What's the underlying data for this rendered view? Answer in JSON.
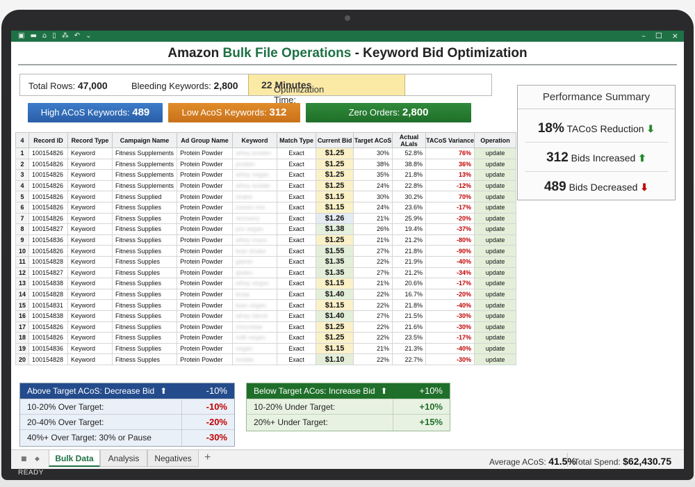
{
  "toolbar": {
    "icons": [
      "save-icon",
      "layout-icon",
      "home-icon",
      "file-icon",
      "format-icon",
      "undo-icon",
      "dropdown-icon"
    ],
    "window_controls": [
      "–",
      "☐",
      "×"
    ]
  },
  "title": {
    "prefix": "Amazon ",
    "highlight": "Bulk File Operations",
    "suffix": " - Keyword Bid Optimization"
  },
  "stats": {
    "total_rows_label": "Total Rows:",
    "total_rows": "47,000",
    "bleeding_label": "Bleeding Keywords:",
    "bleeding": "2,800",
    "opt_time_label": "Optimization Time:",
    "opt_time": "22 Minutes"
  },
  "badges": {
    "high_acos_label": "High ACoS Keywords:",
    "high_acos": "489",
    "low_acos_label": "Low AcoS Keywords:",
    "low_acos": "312",
    "zero_orders_label": "Zero Orders:",
    "zero_orders": "2,800"
  },
  "grid": {
    "corner": "4",
    "columns": [
      "Record ID",
      "Record Type",
      "Campaign Name",
      "Ad Group Name",
      "Keyword",
      "Match Type",
      "Current Bid",
      "Target ACoS",
      "Actual ALals",
      "TACoS Variance",
      "Operation"
    ],
    "rows": [
      [
        "1",
        "100154826",
        "Keyword",
        "Fitness Supplements",
        "Protein Powder",
        "whey protein",
        "Exact",
        "$1.25",
        "30%",
        "52.8%",
        "76%",
        "update"
      ],
      [
        "2",
        "100154826",
        "Keyword",
        "Fitness Supplements",
        "Protein Powder",
        "protein",
        "Exact",
        "$1.25",
        "38%",
        "38.8%",
        "36%",
        "update"
      ],
      [
        "3",
        "100154826",
        "Keyword",
        "Fitness Supplements",
        "Protein Powder",
        "whey vegan",
        "Exact",
        "$1.25",
        "35%",
        "21.8%",
        "13%",
        "update"
      ],
      [
        "4",
        "100154826",
        "Keyword",
        "Fitness Supplements",
        "Protein Powder",
        "whey isolate",
        "Exact",
        "$1.25",
        "24%",
        "22.8%",
        "-12%",
        "update"
      ],
      [
        "5",
        "100154826",
        "Keyword",
        "Fitness Supplied",
        "Protein Powder",
        "shake",
        "Exact",
        "$1.15",
        "30%",
        "30.2%",
        "70%",
        "update"
      ],
      [
        "6",
        "100154826",
        "Keyword",
        "Fitness Supplies",
        "Protein Powder",
        "casein mix",
        "Exact",
        "$1.15",
        "24%",
        "23.6%",
        "-17%",
        "update"
      ],
      [
        "7",
        "100154826",
        "Keyword",
        "Fitness Supplies",
        "Protein Powder",
        "recovery",
        "Exact",
        "$1.26",
        "21%",
        "25.9%",
        "-20%",
        "update"
      ],
      [
        "8",
        "100154827",
        "Keyword",
        "Fitness Supplies",
        "Protein Powder",
        "pro vegan",
        "Exact",
        "$1.38",
        "26%",
        "19.4%",
        "-37%",
        "update"
      ],
      [
        "9",
        "100154836",
        "Keyword",
        "Fitness Supplies",
        "Protein Powder",
        "whey mass",
        "Exact",
        "$1.25",
        "21%",
        "21.2%",
        "-80%",
        "update"
      ],
      [
        "10",
        "100154826",
        "Keyword",
        "Fitness Supplies",
        "Protein Powder",
        "lean shake",
        "Exact",
        "$1.55",
        "27%",
        "21.8%",
        "-90%",
        "update"
      ],
      [
        "11",
        "100154828",
        "Keyword",
        "Fitness Supples",
        "Protein Powder",
        "gainer",
        "Exact",
        "$1.35",
        "22%",
        "21.9%",
        "-40%",
        "update"
      ],
      [
        "12",
        "100154827",
        "Keyword",
        "Fitness Supples",
        "Protein Powder",
        "gluten",
        "Exact",
        "$1.35",
        "27%",
        "21.2%",
        "-34%",
        "update"
      ],
      [
        "13",
        "100154838",
        "Keyword",
        "Fitness Supplies",
        "Protein Powder",
        "whey vegan",
        "Exact",
        "$1.15",
        "21%",
        "20.6%",
        "-17%",
        "update"
      ],
      [
        "14",
        "100154828",
        "Keyword",
        "Fitness Supplies",
        "Protein Powder",
        "bcaa",
        "Exact",
        "$1.40",
        "22%",
        "16.7%",
        "-20%",
        "update"
      ],
      [
        "15",
        "100154831",
        "Keyword",
        "Fitness Supplies",
        "Protein Powder",
        "lean vegan",
        "Exact",
        "$1.15",
        "22%",
        "21.8%",
        "-40%",
        "update"
      ],
      [
        "16",
        "100154838",
        "Keyword",
        "Fitness Supplies",
        "Protein Powder",
        "whey blend",
        "Exact",
        "$1.40",
        "27%",
        "21.5%",
        "-30%",
        "update"
      ],
      [
        "17",
        "100154826",
        "Keyword",
        "Fitness Supplies",
        "Protein Powder",
        "chocolate",
        "Exact",
        "$1.25",
        "22%",
        "21.6%",
        "-30%",
        "update"
      ],
      [
        "18",
        "100154826",
        "Keyword",
        "Fitness Supplies",
        "Protein Powder",
        "milk vegan",
        "Exact",
        "$1.25",
        "22%",
        "23.5%",
        "-17%",
        "update"
      ],
      [
        "19",
        "100154836",
        "Keyword",
        "Fitness Supplies",
        "Protein Powder",
        "vegan",
        "Exact",
        "$1.15",
        "21%",
        "21.3%",
        "-40%",
        "update"
      ],
      [
        "20",
        "100154828",
        "Keyword",
        "Fitness Supples",
        "Protein Powder",
        "isolate",
        "Exact",
        "$1.10",
        "22%",
        "22.7%",
        "-30%",
        "update"
      ]
    ]
  },
  "performance": {
    "title": "Performance Summary",
    "tacos_value": "18%",
    "tacos_label": "TACoS Reduction",
    "increased_value": "312",
    "increased_label": "Bids Increased",
    "decreased_value": "489",
    "decreased_label": "Bids Decreased"
  },
  "rules_above": {
    "head": "Above Target ACoS: Decrease Bid",
    "head_value": "-10%",
    "rows": [
      {
        "label": "10-20% Over Target:",
        "value": "-10%"
      },
      {
        "label": "20-40% Over Target:",
        "value": "-20%"
      },
      {
        "label": "40%+ Over Target: 30% or Pause",
        "value": "-30%"
      }
    ]
  },
  "rules_below": {
    "head": "Below Target ACos: Increase Bid",
    "head_value": "+10%",
    "rows": [
      {
        "label": "10-20% Under Target:",
        "value": "+10%"
      },
      {
        "label": "20%+ Under Target:",
        "value": "+15%"
      }
    ]
  },
  "tabs": [
    "Bulk Data",
    "Analysis",
    "Negatives"
  ],
  "status": {
    "avg_acos_label": "Average ACoS:",
    "avg_acos": "41.5%",
    "total_spend_label": "Total Spend:",
    "total_spend": "$62,430.75",
    "ready": "READY"
  },
  "colors": {
    "excel_green": "#1e7145",
    "blue": "#2a5ea8",
    "orange": "#c9711a",
    "green": "#1f6f2a",
    "red": "#c00000"
  }
}
